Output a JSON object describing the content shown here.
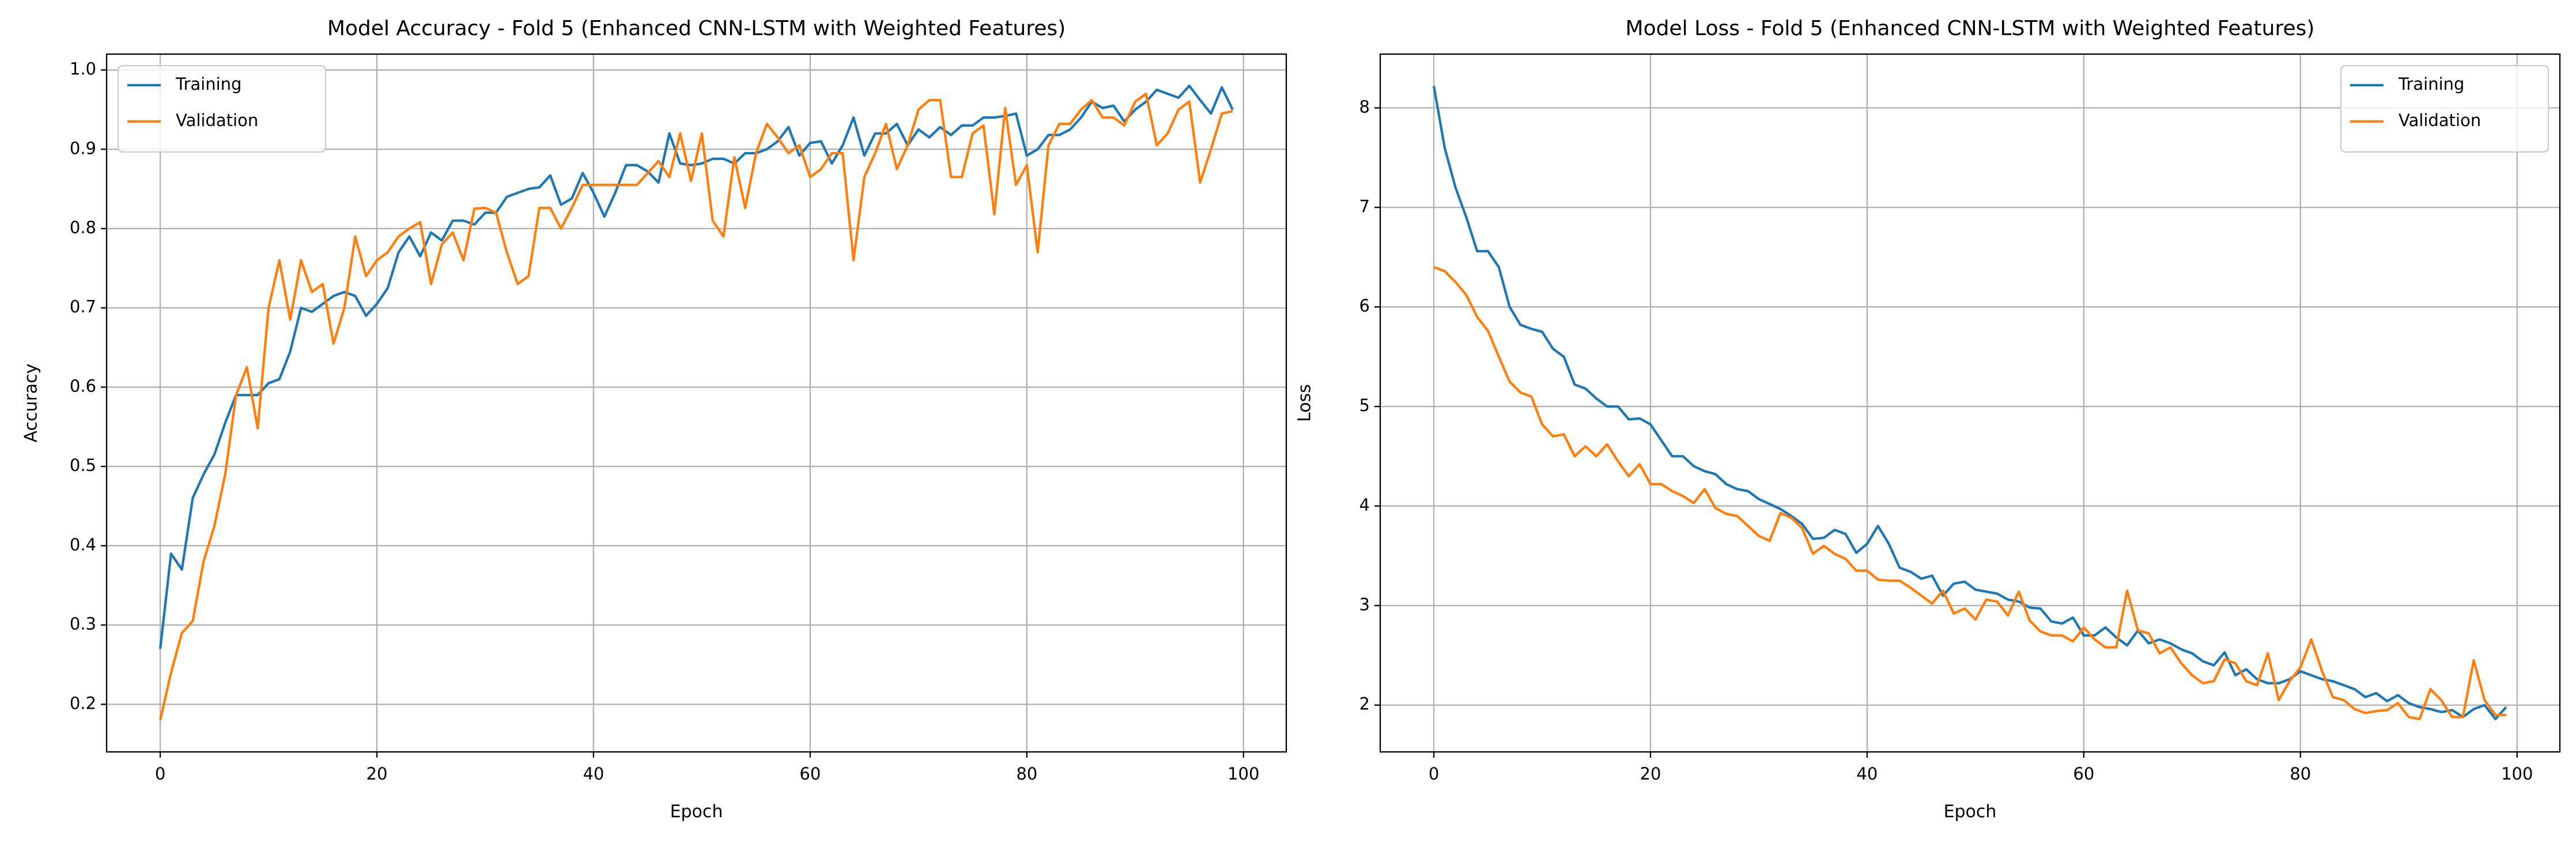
{
  "chart_data": [
    {
      "type": "line",
      "title": "Model Accuracy - Fold 5 (Enhanced CNN-LSTM with Weighted Features)",
      "xlabel": "Epoch",
      "ylabel": "Accuracy",
      "x": [
        0,
        1,
        2,
        3,
        4,
        5,
        6,
        7,
        8,
        9,
        10,
        11,
        12,
        13,
        14,
        15,
        16,
        17,
        18,
        19,
        20,
        21,
        22,
        23,
        24,
        25,
        26,
        27,
        28,
        29,
        30,
        31,
        32,
        33,
        34,
        35,
        36,
        37,
        38,
        39,
        40,
        41,
        42,
        43,
        44,
        45,
        46,
        47,
        48,
        49,
        50,
        51,
        52,
        53,
        54,
        55,
        56,
        57,
        58,
        59,
        60,
        61,
        62,
        63,
        64,
        65,
        66,
        67,
        68,
        69,
        70,
        71,
        72,
        73,
        74,
        75,
        76,
        77,
        78,
        79,
        80,
        81,
        82,
        83,
        84,
        85,
        86,
        87,
        88,
        89,
        90,
        91,
        92,
        93,
        94,
        95,
        96,
        97,
        98,
        99
      ],
      "series": [
        {
          "name": "Training",
          "color": "#1f77b4",
          "values": [
            0.27,
            0.39,
            0.37,
            0.46,
            0.49,
            0.515,
            0.555,
            0.59,
            0.59,
            0.59,
            0.605,
            0.61,
            0.645,
            0.7,
            0.695,
            0.705,
            0.715,
            0.72,
            0.715,
            0.69,
            0.705,
            0.725,
            0.77,
            0.79,
            0.765,
            0.795,
            0.785,
            0.81,
            0.81,
            0.805,
            0.82,
            0.82,
            0.84,
            0.845,
            0.85,
            0.852,
            0.867,
            0.83,
            0.838,
            0.87,
            0.845,
            0.815,
            0.845,
            0.88,
            0.88,
            0.872,
            0.858,
            0.92,
            0.882,
            0.88,
            0.882,
            0.888,
            0.888,
            0.882,
            0.895,
            0.895,
            0.9,
            0.91,
            0.928,
            0.892,
            0.908,
            0.91,
            0.882,
            0.905,
            0.94,
            0.892,
            0.92,
            0.92,
            0.932,
            0.905,
            0.925,
            0.915,
            0.928,
            0.918,
            0.93,
            0.93,
            0.94,
            0.94,
            0.942,
            0.945,
            0.892,
            0.9,
            0.918,
            0.918,
            0.925,
            0.94,
            0.96,
            0.952,
            0.955,
            0.935,
            0.95,
            0.96,
            0.975,
            0.97,
            0.965,
            0.98,
            0.962,
            0.945,
            0.978,
            0.95
          ]
        },
        {
          "name": "Validation",
          "color": "#ff7f0e",
          "values": [
            0.18,
            0.24,
            0.29,
            0.305,
            0.38,
            0.425,
            0.49,
            0.59,
            0.625,
            0.548,
            0.7,
            0.76,
            0.685,
            0.76,
            0.72,
            0.73,
            0.655,
            0.7,
            0.79,
            0.74,
            0.76,
            0.77,
            0.79,
            0.8,
            0.808,
            0.73,
            0.78,
            0.795,
            0.76,
            0.825,
            0.826,
            0.82,
            0.77,
            0.73,
            0.74,
            0.826,
            0.826,
            0.8,
            0.826,
            0.855,
            0.855,
            0.855,
            0.855,
            0.855,
            0.855,
            0.87,
            0.885,
            0.865,
            0.92,
            0.86,
            0.92,
            0.81,
            0.79,
            0.89,
            0.826,
            0.895,
            0.932,
            0.915,
            0.895,
            0.905,
            0.865,
            0.875,
            0.895,
            0.895,
            0.76,
            0.865,
            0.895,
            0.932,
            0.875,
            0.905,
            0.95,
            0.962,
            0.962,
            0.865,
            0.865,
            0.92,
            0.93,
            0.818,
            0.952,
            0.855,
            0.88,
            0.77,
            0.905,
            0.932,
            0.932,
            0.95,
            0.962,
            0.94,
            0.94,
            0.93,
            0.96,
            0.97,
            0.905,
            0.92,
            0.95,
            0.96,
            0.858,
            0.9,
            0.945,
            0.948
          ]
        }
      ],
      "xlim": [
        -4.95,
        103.95
      ],
      "ylim": [
        0.14,
        1.02
      ],
      "xticks": [
        0,
        20,
        40,
        60,
        80,
        100
      ],
      "yticks": [
        0.2,
        0.3,
        0.4,
        0.5,
        0.6,
        0.7,
        0.8,
        0.9,
        {
          "value": 1,
          "label": "1.0"
        }
      ],
      "grid": true,
      "legend_loc": "upper left"
    },
    {
      "type": "line",
      "title": "Model Loss - Fold 5 (Enhanced CNN-LSTM with Weighted Features)",
      "xlabel": "Epoch",
      "ylabel": "Loss",
      "x": [
        0,
        1,
        2,
        3,
        4,
        5,
        6,
        7,
        8,
        9,
        10,
        11,
        12,
        13,
        14,
        15,
        16,
        17,
        18,
        19,
        20,
        21,
        22,
        23,
        24,
        25,
        26,
        27,
        28,
        29,
        30,
        31,
        32,
        33,
        34,
        35,
        36,
        37,
        38,
        39,
        40,
        41,
        42,
        43,
        44,
        45,
        46,
        47,
        48,
        49,
        50,
        51,
        52,
        53,
        54,
        55,
        56,
        57,
        58,
        59,
        60,
        61,
        62,
        63,
        64,
        65,
        66,
        67,
        68,
        69,
        70,
        71,
        72,
        73,
        74,
        75,
        76,
        77,
        78,
        79,
        80,
        81,
        82,
        83,
        84,
        85,
        86,
        87,
        88,
        89,
        90,
        91,
        92,
        93,
        94,
        95,
        96,
        97,
        98,
        99
      ],
      "series": [
        {
          "name": "Training",
          "color": "#1f77b4",
          "values": [
            8.22,
            7.6,
            7.2,
            6.9,
            6.56,
            6.56,
            6.4,
            6.0,
            5.82,
            5.78,
            5.75,
            5.58,
            5.5,
            5.22,
            5.18,
            5.08,
            5.0,
            5.0,
            4.87,
            4.88,
            4.82,
            4.66,
            4.5,
            4.5,
            4.4,
            4.35,
            4.32,
            4.22,
            4.17,
            4.15,
            4.07,
            4.02,
            3.97,
            3.9,
            3.82,
            3.67,
            3.68,
            3.76,
            3.72,
            3.53,
            3.62,
            3.8,
            3.62,
            3.38,
            3.34,
            3.27,
            3.3,
            3.1,
            3.22,
            3.24,
            3.16,
            3.14,
            3.12,
            3.06,
            3.04,
            2.98,
            2.97,
            2.84,
            2.82,
            2.88,
            2.7,
            2.7,
            2.78,
            2.68,
            2.6,
            2.75,
            2.62,
            2.66,
            2.62,
            2.56,
            2.52,
            2.44,
            2.4,
            2.53,
            2.3,
            2.36,
            2.26,
            2.22,
            2.22,
            2.26,
            2.34,
            2.3,
            2.26,
            2.24,
            2.2,
            2.16,
            2.08,
            2.12,
            2.04,
            2.1,
            2.02,
            1.98,
            1.96,
            1.93,
            1.95,
            1.88,
            1.96,
            2.0,
            1.86,
            1.98
          ]
        },
        {
          "name": "Validation",
          "color": "#ff7f0e",
          "values": [
            6.4,
            6.36,
            6.25,
            6.12,
            5.9,
            5.76,
            5.5,
            5.25,
            5.14,
            5.1,
            4.82,
            4.7,
            4.72,
            4.5,
            4.6,
            4.5,
            4.62,
            4.45,
            4.3,
            4.42,
            4.22,
            4.22,
            4.15,
            4.1,
            4.03,
            4.17,
            3.98,
            3.92,
            3.9,
            3.8,
            3.7,
            3.65,
            3.93,
            3.88,
            3.78,
            3.52,
            3.6,
            3.52,
            3.47,
            3.35,
            3.35,
            3.26,
            3.25,
            3.25,
            3.18,
            3.1,
            3.02,
            3.15,
            2.92,
            2.97,
            2.86,
            3.06,
            3.04,
            2.9,
            3.14,
            2.85,
            2.74,
            2.7,
            2.7,
            2.64,
            2.78,
            2.66,
            2.58,
            2.58,
            3.15,
            2.75,
            2.72,
            2.52,
            2.58,
            2.42,
            2.3,
            2.22,
            2.24,
            2.46,
            2.42,
            2.24,
            2.2,
            2.52,
            2.05,
            2.24,
            2.38,
            2.66,
            2.34,
            2.08,
            2.05,
            1.96,
            1.92,
            1.94,
            1.95,
            2.02,
            1.88,
            1.86,
            2.16,
            2.05,
            1.88,
            1.88,
            2.45,
            2.05,
            1.9,
            1.9
          ]
        }
      ],
      "xlim": [
        -4.95,
        103.95
      ],
      "ylim": [
        1.53,
        8.54
      ],
      "xticks": [
        0,
        20,
        40,
        60,
        80,
        100
      ],
      "yticks": [
        2,
        3,
        4,
        5,
        6,
        7,
        8
      ],
      "grid": true,
      "legend_loc": "upper right"
    }
  ]
}
